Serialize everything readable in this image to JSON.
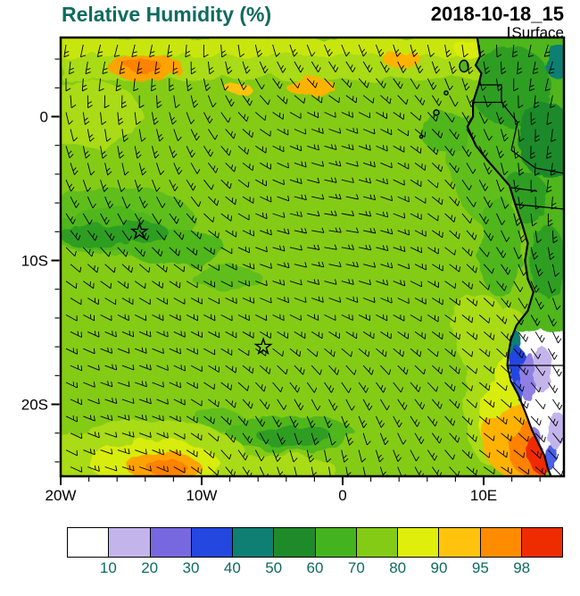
{
  "header": {
    "title": "Relative Humidity (%)",
    "datetime": "2018-10-18_15",
    "level": "Surface"
  },
  "map": {
    "y_axis_ticks": [
      "0",
      "10S",
      "20S"
    ],
    "x_axis_ticks": [
      "20W",
      "10W",
      "0",
      "10E"
    ],
    "markers": [
      {
        "type": "star",
        "lon_deg": -14.4,
        "lat_deg": -8.0
      },
      {
        "type": "star",
        "lon_deg": -5.6,
        "lat_deg": -16.0
      }
    ]
  },
  "colorbar": {
    "labels": [
      "10",
      "20",
      "30",
      "40",
      "50",
      "60",
      "70",
      "80",
      "90",
      "95",
      "98"
    ],
    "colors": [
      "#FFFFFF",
      "#C3B5EC",
      "#7768E0",
      "#2447E0",
      "#0F7F73",
      "#1F8A2A",
      "#44B41E",
      "#84CB16",
      "#E0EE0C",
      "#FFC30E",
      "#FF8C00",
      "#EE2C00"
    ]
  },
  "chart_data": {
    "type": "heatmap",
    "title": "Relative Humidity (%)",
    "valid_time": "2018-10-18_15",
    "level": "Surface",
    "units": "%",
    "lon_range": [
      -20,
      15.75
    ],
    "lat_range": [
      -25,
      5.5
    ],
    "colorbar_levels": [
      10,
      20,
      30,
      40,
      50,
      60,
      70,
      80,
      90,
      95,
      98
    ],
    "colorbar_colors": [
      "#FFFFFF",
      "#C3B5EC",
      "#7768E0",
      "#2447E0",
      "#0F7F73",
      "#1F8A2A",
      "#44B41E",
      "#84CB16",
      "#E0EE0C",
      "#FFC30E",
      "#FF8C00",
      "#EE2C00"
    ],
    "sample_grid": {
      "lons": [
        -20,
        -15,
        -10,
        -5,
        0,
        5,
        10,
        15
      ],
      "lats": [
        5,
        0,
        -5,
        -10,
        -15,
        -20,
        -25
      ],
      "rh_values": [
        [
          88,
          90,
          92,
          90,
          86,
          84,
          82,
          80
        ],
        [
          85,
          82,
          80,
          80,
          80,
          82,
          80,
          75
        ],
        [
          80,
          78,
          76,
          78,
          80,
          80,
          78,
          72
        ],
        [
          75,
          72,
          78,
          80,
          80,
          80,
          76,
          60
        ],
        [
          78,
          80,
          80,
          78,
          80,
          85,
          82,
          20
        ],
        [
          85,
          88,
          80,
          72,
          78,
          85,
          90,
          12
        ],
        [
          92,
          96,
          85,
          80,
          80,
          85,
          98,
          15
        ]
      ]
    },
    "overlays": [
      "wind_barbs",
      "station_markers",
      "coastline",
      "country_borders"
    ]
  }
}
